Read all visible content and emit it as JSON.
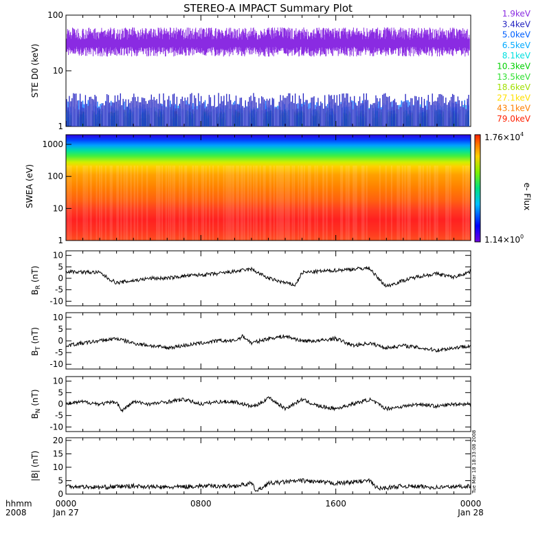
{
  "title": "STEREO-A IMPACT Summary Plot",
  "timestamp": "Tue Mar 18 18:33:08 2008",
  "colors": {
    "violet": "#8a2be2",
    "blue": "#0000ff",
    "line": "#000000"
  },
  "chart_data": [
    {
      "type": "line",
      "panel": "ste",
      "ylabel": "STE D0 (keV)",
      "yscale": "log",
      "ylim": [
        1,
        100
      ],
      "yticks": [
        "1",
        "10",
        "100"
      ],
      "legend_position": "right",
      "series": [
        {
          "name": "1.9keV",
          "color": "#8a2be2",
          "typical": 30,
          "range": [
            15,
            60
          ]
        },
        {
          "name": "3.4keV",
          "color": "#2020c0",
          "typical": 2.5,
          "range": [
            2,
            4
          ]
        },
        {
          "name": "5.0keV",
          "color": "#0060ff",
          "typical": 2.2,
          "range": [
            1.9,
            3
          ]
        },
        {
          "name": "6.5keV",
          "color": "#00aaff",
          "typical": 2.0,
          "range": [
            1.5,
            2.5
          ]
        },
        {
          "name": "8.1keV",
          "color": "#00e0e0",
          "typical": 1.8,
          "range": [
            1.4,
            2.2
          ]
        },
        {
          "name": "10.3keV",
          "color": "#00d000",
          "typical": 1.5,
          "range": [
            1.2,
            2
          ]
        },
        {
          "name": "13.5keV",
          "color": "#30e030",
          "typical": 1.4,
          "range": [
            1,
            2
          ]
        },
        {
          "name": "18.6keV",
          "color": "#a0e000",
          "typical": 1.3,
          "range": [
            1,
            2
          ]
        },
        {
          "name": "27.1keV",
          "color": "#ffe000",
          "typical": 1.2,
          "range": [
            1,
            2
          ]
        },
        {
          "name": "43.1keV",
          "color": "#ff8000",
          "typical": 1.1,
          "range": [
            1,
            2
          ]
        },
        {
          "name": "79.0keV",
          "color": "#ff2000",
          "typical": 1.1,
          "range": [
            1,
            2
          ]
        }
      ]
    },
    {
      "type": "heatmap",
      "panel": "swea",
      "ylabel": "SWEA (eV)",
      "yscale": "log",
      "ylim": [
        1,
        2000
      ],
      "yticks": [
        "1",
        "10",
        "100",
        "1000"
      ],
      "colorbar": {
        "label": "e- Flux",
        "max_label": "1.76×10",
        "max_exp": "4",
        "min_label": "1.14×10",
        "min_exp": "0"
      }
    },
    {
      "type": "line",
      "panel": "br",
      "ylabel_main": "B",
      "ylabel_sub": "R",
      "ylabel_unit": " (nT)",
      "ylim": [
        -12,
        12
      ],
      "yticks": [
        "-10",
        "-5",
        "0",
        "5",
        "10"
      ],
      "x": [
        0,
        2,
        2.5,
        3,
        3.5,
        4,
        5,
        6,
        7,
        8,
        9,
        10,
        11,
        11.5,
        12,
        13,
        13.6,
        14,
        15,
        16,
        17,
        18,
        18.5,
        19,
        20,
        21,
        22,
        23,
        24
      ],
      "values": [
        3,
        2.5,
        0,
        -2,
        -1.5,
        -1,
        0,
        0,
        1,
        1.5,
        2,
        3,
        4,
        2,
        0,
        -2,
        -3,
        2.5,
        3,
        3.5,
        4,
        4.5,
        0,
        -3.5,
        -1,
        1,
        2,
        0.5,
        3
      ]
    },
    {
      "type": "line",
      "panel": "bt",
      "ylabel_main": "B",
      "ylabel_sub": "T",
      "ylabel_unit": " (nT)",
      "ylim": [
        -12,
        12
      ],
      "yticks": [
        "-10",
        "-5",
        "0",
        "5",
        "10"
      ],
      "x": [
        0,
        2,
        3,
        4,
        5,
        6,
        7,
        8,
        9,
        10,
        10.5,
        11,
        12,
        13,
        14,
        15,
        16,
        17,
        18,
        19,
        20,
        21,
        22,
        23,
        24
      ],
      "values": [
        -2,
        0,
        1,
        -1,
        -2,
        -3,
        -2,
        -1,
        0,
        0,
        2,
        -1,
        1,
        2,
        0,
        0,
        1,
        -2,
        -1,
        -3,
        -2,
        -3,
        -4,
        -3,
        -2
      ]
    },
    {
      "type": "line",
      "panel": "bn",
      "ylabel_main": "B",
      "ylabel_sub": "N",
      "ylabel_unit": " (nT)",
      "ylim": [
        -12,
        12
      ],
      "yticks": [
        "-10",
        "-5",
        "0",
        "5",
        "10"
      ],
      "x": [
        0,
        1,
        2,
        3,
        3.3,
        4,
        5,
        6,
        7,
        8,
        9,
        10,
        11,
        11.5,
        12,
        13,
        14,
        15,
        16,
        17,
        18,
        19,
        20,
        21,
        22,
        23,
        24
      ],
      "values": [
        0,
        1,
        0,
        1,
        -3,
        1,
        0,
        1,
        2,
        0,
        1,
        1,
        -1,
        0,
        3,
        -2,
        2,
        -1,
        -2,
        0,
        2,
        -2,
        -1,
        0,
        -1,
        0,
        0
      ]
    },
    {
      "type": "line",
      "panel": "bmag",
      "ylabel": "|B| (nT)",
      "ylim": [
        0,
        21
      ],
      "yticks": [
        "0",
        "5",
        "10",
        "15",
        "20"
      ],
      "x": [
        0,
        2,
        4,
        6,
        8,
        10,
        11,
        11.3,
        12,
        14,
        16,
        18,
        18.5,
        20,
        22,
        24
      ],
      "values": [
        3,
        2.5,
        3,
        2.5,
        3,
        3,
        4,
        1,
        4,
        5,
        4,
        5,
        2,
        3,
        2.5,
        3
      ]
    }
  ],
  "xaxis": {
    "left_label_top": "hhmm",
    "left_label_bottom": "2008",
    "ticks": [
      {
        "label": "0000",
        "sub": "Jan 27",
        "hour": 0
      },
      {
        "label": "0800",
        "sub": "",
        "hour": 8
      },
      {
        "label": "1600",
        "sub": "",
        "hour": 16
      },
      {
        "label": "0000",
        "sub": "Jan 28",
        "hour": 24
      }
    ],
    "range_hours": [
      0,
      24
    ]
  }
}
